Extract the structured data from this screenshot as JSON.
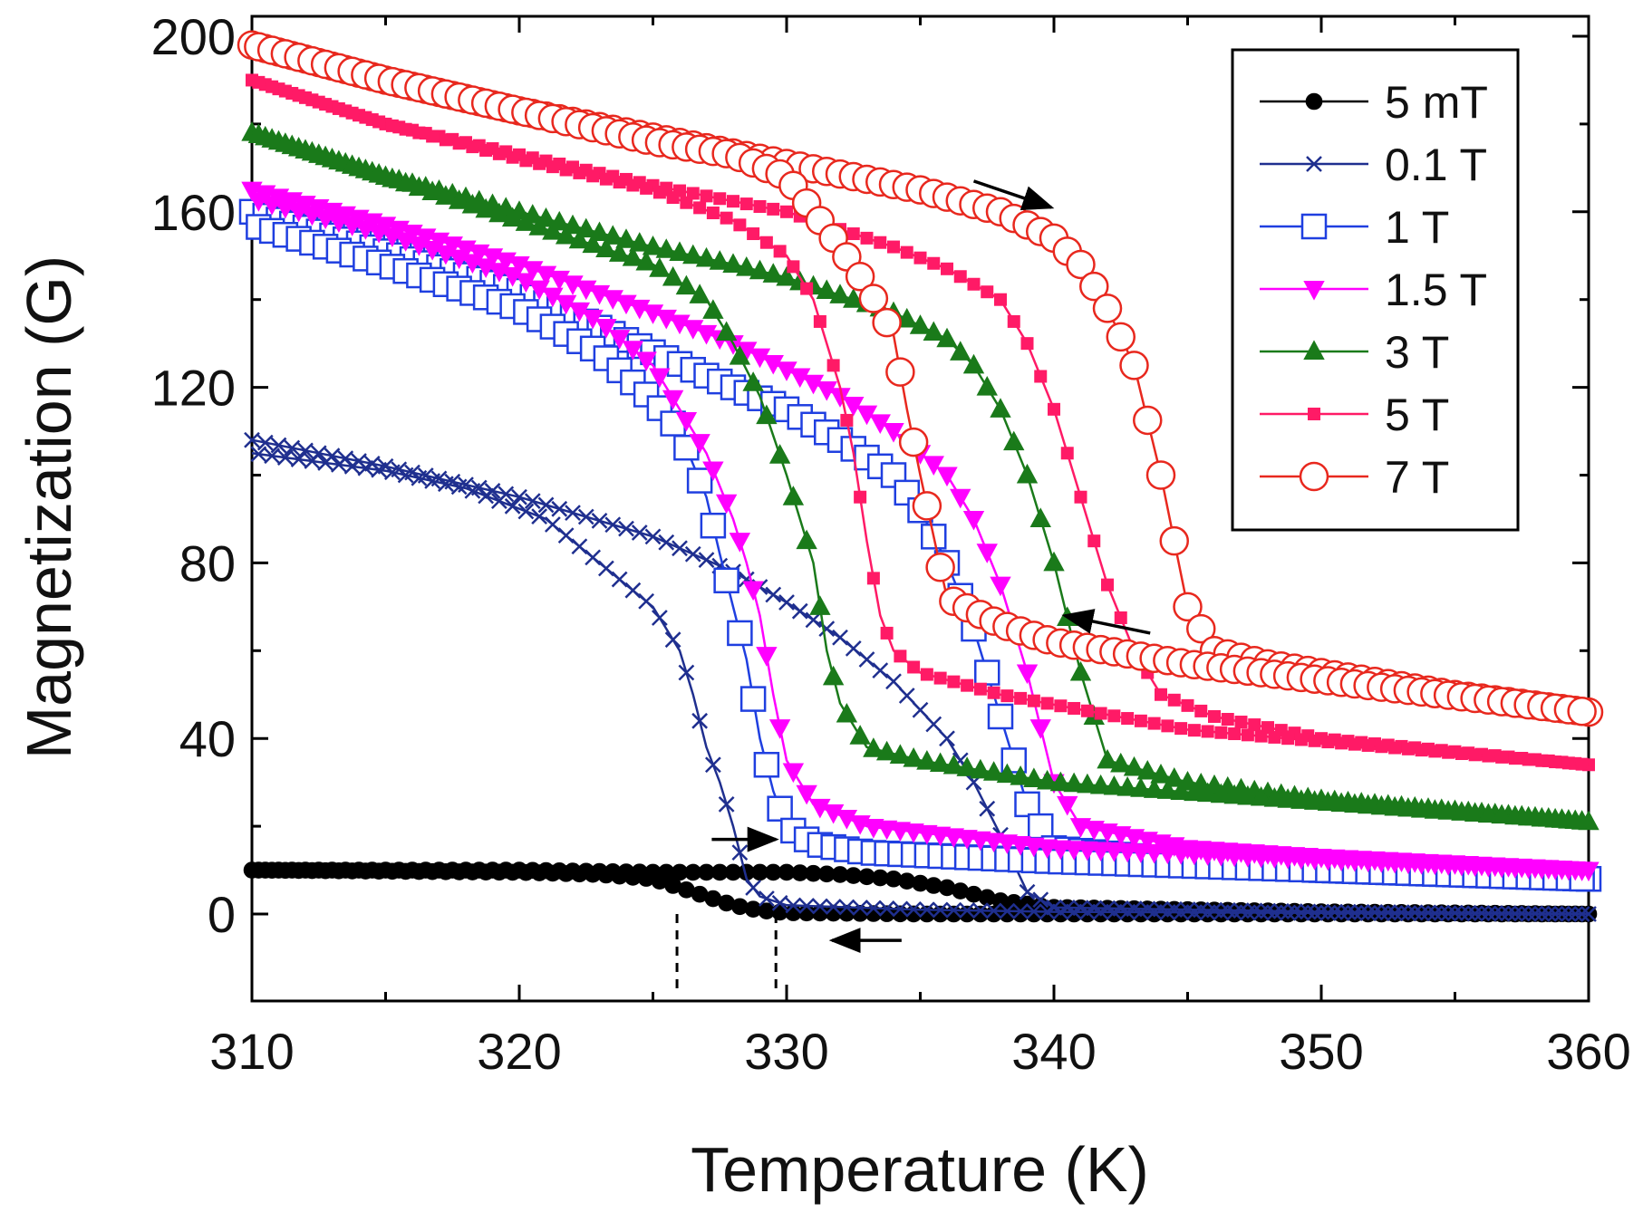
{
  "chart_data": {
    "type": "line",
    "title": "",
    "xlabel": "Temperature (K)",
    "ylabel": "Magnetization (G)",
    "xlim": [
      310,
      360
    ],
    "ylim": [
      -20,
      205
    ],
    "xticks": [
      310,
      320,
      330,
      340,
      350,
      360
    ],
    "xtick_labels": [
      "310",
      "320",
      "330",
      "340",
      "350",
      "360"
    ],
    "yticks": [
      0,
      40,
      80,
      120,
      160,
      200
    ],
    "ytick_labels": [
      "0",
      "40",
      "80",
      "120",
      "160",
      "200"
    ],
    "grid": false,
    "legend_position": "top-right",
    "series": [
      {
        "name": "5 mT",
        "color": "#000000",
        "marker": "filled-circle",
        "heating": {
          "x": [
            310,
            320,
            325,
            328,
            330,
            332,
            334,
            336,
            338,
            340,
            350,
            360
          ],
          "y": [
            10,
            10,
            9.5,
            9.5,
            9.5,
            9,
            8,
            6,
            3,
            1.5,
            0.5,
            0
          ]
        },
        "cooling": {
          "x": [
            310,
            320,
            323,
            325,
            326,
            327,
            328,
            329,
            330,
            335,
            340,
            350,
            360
          ],
          "y": [
            10,
            9.5,
            9,
            8,
            6,
            4,
            2,
            0.8,
            0.3,
            0,
            0,
            0,
            0
          ]
        }
      },
      {
        "name": "0.1 T",
        "color": "#1f2f8f",
        "marker": "x",
        "heating": {
          "x": [
            310,
            315,
            320,
            325,
            328,
            330,
            332,
            334,
            336,
            337,
            338,
            339,
            340,
            350,
            360
          ],
          "y": [
            108,
            102,
            95,
            86,
            78,
            71,
            63,
            53,
            40,
            30,
            18,
            5,
            1.5,
            0.5,
            0
          ]
        },
        "cooling": {
          "x": [
            310,
            315,
            318,
            321,
            323,
            325,
            326,
            326.5,
            327,
            327.5,
            328,
            328.5,
            329,
            330,
            335,
            340,
            360
          ],
          "y": [
            105,
            101,
            97,
            90,
            80,
            70,
            60,
            50,
            38,
            30,
            20,
            8,
            4,
            2,
            1,
            0.5,
            0
          ]
        }
      },
      {
        "name": "1 T",
        "color": "#1f3fe0",
        "marker": "open-square",
        "heating": {
          "x": [
            310,
            315,
            320,
            325,
            328,
            330,
            332,
            334,
            335,
            336,
            337,
            338,
            339,
            340,
            345,
            350,
            360
          ],
          "y": [
            160,
            151,
            142,
            128,
            120,
            115,
            108,
            100,
            92,
            80,
            65,
            45,
            25,
            15,
            12,
            10,
            8
          ]
        },
        "cooling": {
          "x": [
            310,
            315,
            320,
            323,
            325,
            326,
            327,
            327.5,
            328,
            328.5,
            329,
            329.5,
            330,
            331,
            333,
            340,
            360
          ],
          "y": [
            157,
            148,
            138,
            128,
            117,
            110,
            95,
            82,
            70,
            58,
            40,
            28,
            20,
            16,
            14,
            12,
            8
          ]
        }
      },
      {
        "name": "1.5 T",
        "color": "#ff00ff",
        "marker": "filled-triangle-down",
        "heating": {
          "x": [
            310,
            315,
            320,
            325,
            328,
            330,
            332,
            334,
            336,
            337,
            338,
            339,
            340,
            341,
            345,
            350,
            360
          ],
          "y": [
            165,
            157,
            148,
            137,
            130,
            124,
            118,
            110,
            100,
            90,
            75,
            55,
            30,
            20,
            15,
            13,
            10
          ]
        },
        "cooling": {
          "x": [
            310,
            315,
            320,
            323,
            325,
            326,
            327,
            328,
            328.5,
            329,
            329.5,
            330,
            331,
            333,
            340,
            360
          ],
          "y": [
            163,
            155,
            145,
            135,
            125,
            115,
            105,
            90,
            80,
            68,
            50,
            35,
            25,
            20,
            15,
            10
          ]
        }
      },
      {
        "name": "3 T",
        "color": "#1a7a1a",
        "marker": "filled-triangle-up",
        "heating": {
          "x": [
            310,
            315,
            320,
            325,
            328,
            330,
            332,
            334,
            336,
            337,
            338,
            339,
            340,
            341,
            342,
            345,
            350,
            360
          ],
          "y": [
            178,
            168,
            160,
            152,
            148,
            145,
            141,
            137,
            131,
            125,
            115,
            100,
            80,
            55,
            35,
            30,
            26,
            21
          ]
        },
        "cooling": {
          "x": [
            310,
            315,
            320,
            325,
            327,
            328,
            329,
            330,
            331,
            331.5,
            332,
            333,
            335,
            340,
            360
          ],
          "y": [
            178,
            168,
            158,
            148,
            140,
            130,
            118,
            100,
            80,
            60,
            48,
            38,
            35,
            30,
            21
          ]
        }
      },
      {
        "name": "5 T",
        "color": "#ff1a66",
        "marker": "filled-square",
        "heating": {
          "x": [
            310,
            315,
            320,
            325,
            330,
            334,
            336,
            338,
            339,
            340,
            341,
            342,
            343,
            344,
            346,
            350,
            355,
            360
          ],
          "y": [
            190,
            180,
            173,
            166,
            160,
            152,
            147,
            140,
            130,
            115,
            95,
            75,
            60,
            50,
            45,
            40,
            37,
            34
          ]
        },
        "cooling": {
          "x": [
            310,
            315,
            320,
            325,
            328,
            330,
            331,
            332,
            332.5,
            333,
            333.5,
            334,
            335,
            338,
            345,
            360
          ],
          "y": [
            190,
            180,
            172,
            165,
            158,
            150,
            140,
            120,
            105,
            85,
            68,
            60,
            55,
            50,
            42,
            34
          ]
        }
      },
      {
        "name": "7 T",
        "color": "#e8281e",
        "marker": "open-circle",
        "heating": {
          "x": [
            310,
            315,
            320,
            325,
            330,
            335,
            338,
            340,
            341,
            342,
            343,
            344,
            345,
            346,
            348,
            350,
            355,
            360
          ],
          "y": [
            198,
            190,
            183,
            177,
            171,
            165,
            160,
            154,
            148,
            138,
            125,
            100,
            70,
            60,
            57,
            55,
            50,
            46
          ]
        },
        "cooling": {
          "x": [
            310,
            315,
            320,
            325,
            328,
            330,
            331,
            332,
            333,
            334,
            334.5,
            335,
            335.5,
            336,
            338,
            340,
            345,
            360
          ],
          "y": [
            198,
            190,
            183,
            176,
            173,
            168,
            160,
            152,
            143,
            132,
            115,
            100,
            86,
            72,
            66,
            62,
            57,
            46
          ]
        }
      }
    ],
    "annotations": [
      {
        "type": "arrow",
        "text": "",
        "from": [
          337,
          167
        ],
        "to": [
          339.9,
          161
        ],
        "meaning": "heating direction, 7 T"
      },
      {
        "type": "arrow",
        "text": "",
        "from": [
          343.6,
          64
        ],
        "to": [
          340.4,
          68
        ],
        "meaning": "cooling direction"
      },
      {
        "type": "arrow",
        "text": "",
        "from": [
          327.2,
          17
        ],
        "to": [
          329.6,
          17
        ],
        "meaning": "heating direction, low field"
      },
      {
        "type": "arrow",
        "text": "",
        "from": [
          334.3,
          -6
        ],
        "to": [
          331.7,
          -6
        ],
        "meaning": "cooling direction, low field"
      },
      {
        "type": "vline-dashed",
        "x": 325.9,
        "from_y": -18,
        "to_y": 0
      },
      {
        "type": "vline-dashed",
        "x": 329.6,
        "from_y": -18,
        "to_y": 0
      }
    ]
  }
}
